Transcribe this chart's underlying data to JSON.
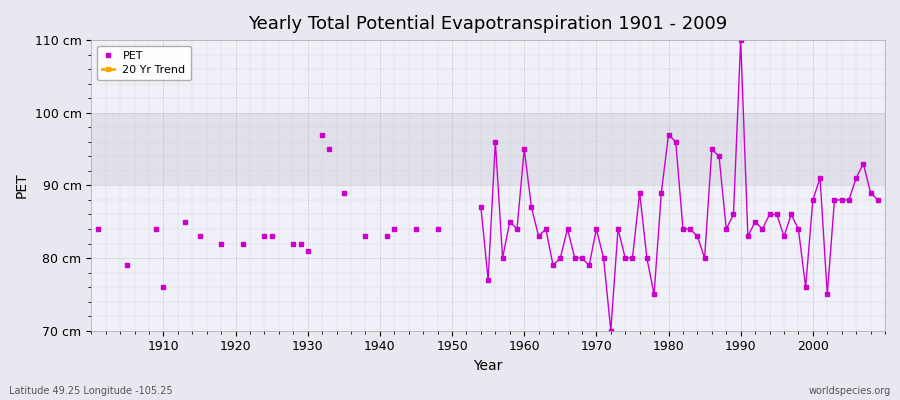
{
  "title": "Yearly Total Potential Evapotranspiration 1901 - 2009",
  "xlabel": "Year",
  "ylabel": "PET",
  "lat_lon_label": "Latitude 49.25 Longitude -105.25",
  "worldspecies_label": "worldspecies.org",
  "ylim": [
    70,
    110
  ],
  "yticks": [
    70,
    80,
    90,
    100,
    110
  ],
  "ytick_labels": [
    "70 cm",
    "80 cm",
    "90 cm",
    "100 cm",
    "110 cm"
  ],
  "bg_color": "#e8e8f0",
  "plot_bg_color": "#f0f0f8",
  "line_color": "#cc00cc",
  "trend_color": "#ffa500",
  "grid_color": "#cccccc",
  "sparse_years": [
    1901,
    1905,
    1909,
    1910,
    1913,
    1915,
    1918,
    1921,
    1924,
    1925,
    1928,
    1929,
    1930,
    1932,
    1933,
    1935,
    1938,
    1941,
    1942,
    1945,
    1948
  ],
  "sparse_values": [
    84,
    79,
    84,
    76,
    85,
    83,
    82,
    82,
    83,
    83,
    82,
    82,
    81,
    97,
    95,
    89,
    83,
    83,
    84,
    84,
    84
  ],
  "dense_years": [
    1954,
    1955,
    1956,
    1957,
    1958,
    1959,
    1960,
    1961,
    1962,
    1963,
    1964,
    1965,
    1966,
    1967,
    1968,
    1969,
    1970,
    1971,
    1972,
    1973,
    1974,
    1975,
    1976,
    1977,
    1978,
    1979,
    1980,
    1981,
    1982,
    1983,
    1984,
    1985,
    1986,
    1987,
    1988,
    1989,
    1990,
    1991,
    1992,
    1993,
    1994,
    1995,
    1996,
    1997,
    1998,
    1999,
    2000,
    2001,
    2002,
    2003,
    2004,
    2005,
    2006,
    2007,
    2008,
    2009
  ],
  "dense_values": [
    87,
    77,
    96,
    80,
    85,
    84,
    95,
    87,
    83,
    84,
    79,
    80,
    84,
    80,
    80,
    79,
    84,
    80,
    70,
    84,
    80,
    80,
    89,
    80,
    75,
    89,
    97,
    96,
    84,
    84,
    83,
    80,
    95,
    94,
    84,
    86,
    110,
    83,
    85,
    84,
    86,
    86,
    83,
    86,
    84,
    76,
    88,
    91,
    75,
    88,
    88,
    88,
    91,
    93,
    89,
    88
  ],
  "band_ranges": [
    [
      90,
      100
    ]
  ],
  "band_color": "#e0e0ea"
}
